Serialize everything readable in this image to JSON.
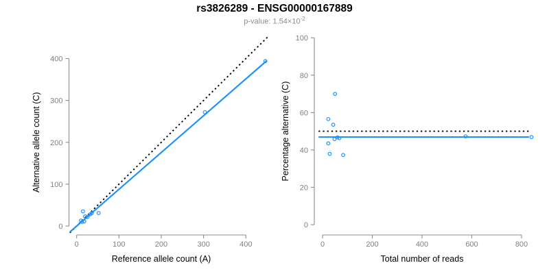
{
  "header": {
    "title": "rs3826289 - ENSG00000167889",
    "subtitle_label": "p-value: ",
    "p_mantissa": "1.54",
    "p_times": "×10",
    "p_exponent": "-2"
  },
  "colors": {
    "accent_blue": "#1E90FF",
    "dotted_black": "#000000",
    "axis_line": "#8c8c8c",
    "tick_text": "#808080",
    "axis_title_text": "#000000",
    "title_text": "#000000",
    "subtitle_text": "#8c8c8c"
  },
  "chart_data": [
    {
      "type": "scatter",
      "name": "allele-counts-plot",
      "title": "",
      "xlabel": "Reference allele count (A)",
      "ylabel": "Alternative allele count (C)",
      "xticks": [
        0,
        100,
        200,
        300,
        400
      ],
      "yticks": [
        0,
        100,
        200,
        300,
        400
      ],
      "xlim": [
        -18,
        452
      ],
      "ylim": [
        -18,
        452
      ],
      "grid": false,
      "legend": "none",
      "points": [
        [
          15,
          35
        ],
        [
          10,
          13
        ],
        [
          20,
          23
        ],
        [
          26,
          22
        ],
        [
          32,
          28
        ],
        [
          36,
          31
        ],
        [
          13,
          10
        ],
        [
          18,
          11
        ],
        [
          52,
          31
        ],
        [
          303,
          272
        ],
        [
          446,
          394
        ]
      ],
      "lines": [
        {
          "name": "identity-line",
          "style": "dotted",
          "color": "#000000",
          "from": [
            -16,
            -16
          ],
          "to": [
            452,
            452
          ]
        },
        {
          "name": "fit-line",
          "style": "solid",
          "color": "#1E90FF",
          "from": [
            -16,
            -14.1
          ],
          "to": [
            449,
            394.5
          ]
        }
      ]
    },
    {
      "type": "scatter",
      "name": "percentage-alternative-plot",
      "title": "",
      "xlabel": "Total number of reads",
      "ylabel": "Percentage alternative (C)",
      "xticks": [
        0,
        200,
        400,
        600,
        800
      ],
      "yticks": [
        0,
        20,
        40,
        60,
        80,
        100
      ],
      "xlim": [
        -33,
        870
      ],
      "ylim": [
        0,
        100
      ],
      "grid": false,
      "legend": "none",
      "points": [
        [
          50,
          70
        ],
        [
          23,
          56.5
        ],
        [
          43,
          53.5
        ],
        [
          48,
          45.8
        ],
        [
          60,
          46.7
        ],
        [
          67,
          46.3
        ],
        [
          23,
          43.5
        ],
        [
          29,
          37.9
        ],
        [
          83,
          37.3
        ],
        [
          575,
          47.3
        ],
        [
          840,
          46.9
        ]
      ],
      "lines": [
        {
          "name": "expected-50pct-line",
          "style": "dotted",
          "color": "#000000",
          "from": [
            -16,
            50
          ],
          "to": [
            830,
            50
          ]
        },
        {
          "name": "fit-line",
          "style": "solid",
          "color": "#1E90FF",
          "from": [
            -16,
            46.9
          ],
          "to": [
            830,
            46.9
          ]
        }
      ]
    }
  ]
}
